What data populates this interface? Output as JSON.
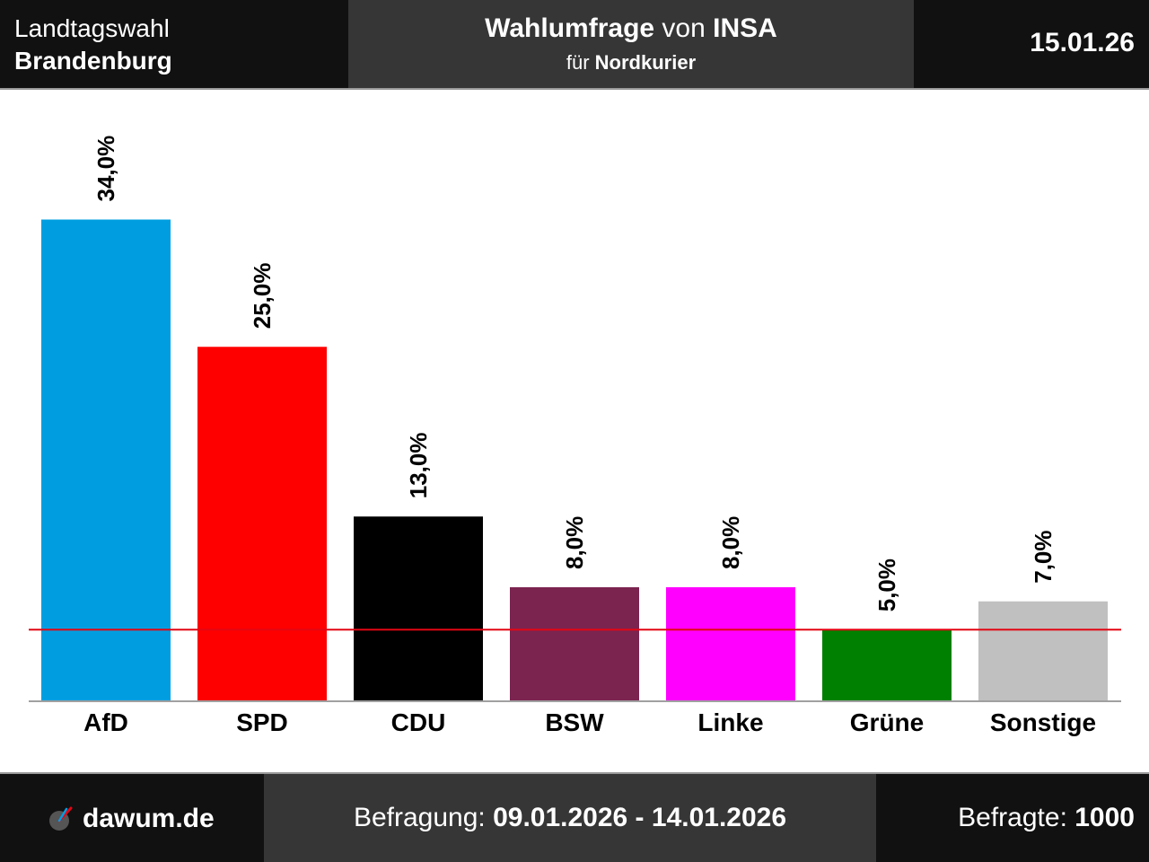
{
  "header": {
    "left_line1": "Landtagswahl",
    "left_line2": "Brandenburg",
    "title_bold1": "Wahlumfrage",
    "title_normal": "von",
    "title_bold2": "INSA",
    "subtitle_normal": "für",
    "subtitle_bold": "Nordkurier",
    "date": "15.01.26"
  },
  "footer": {
    "site": "dawum.de",
    "survey_label": "Befragung:",
    "survey_period": "09.01.2026 - 14.01.2026",
    "respondents_label": "Befragte:",
    "respondents": "1000"
  },
  "chart_data": {
    "type": "bar",
    "categories": [
      "AfD",
      "SPD",
      "CDU",
      "BSW",
      "Linke",
      "Grüne",
      "Sonstige"
    ],
    "values": [
      34.0,
      25.0,
      13.0,
      8.0,
      8.0,
      5.0,
      7.0
    ],
    "value_labels": [
      "34,0%",
      "25,0%",
      "13,0%",
      "8,0%",
      "8,0%",
      "5,0%",
      "7,0%"
    ],
    "colors": [
      "#009ee0",
      "#ff0000",
      "#000000",
      "#7b2450",
      "#ff00ff",
      "#008000",
      "#c0c0c0"
    ],
    "threshold": 5.0,
    "threshold_color": "#e30613",
    "ylim": [
      0,
      40
    ],
    "grid": false,
    "legend": "none"
  }
}
